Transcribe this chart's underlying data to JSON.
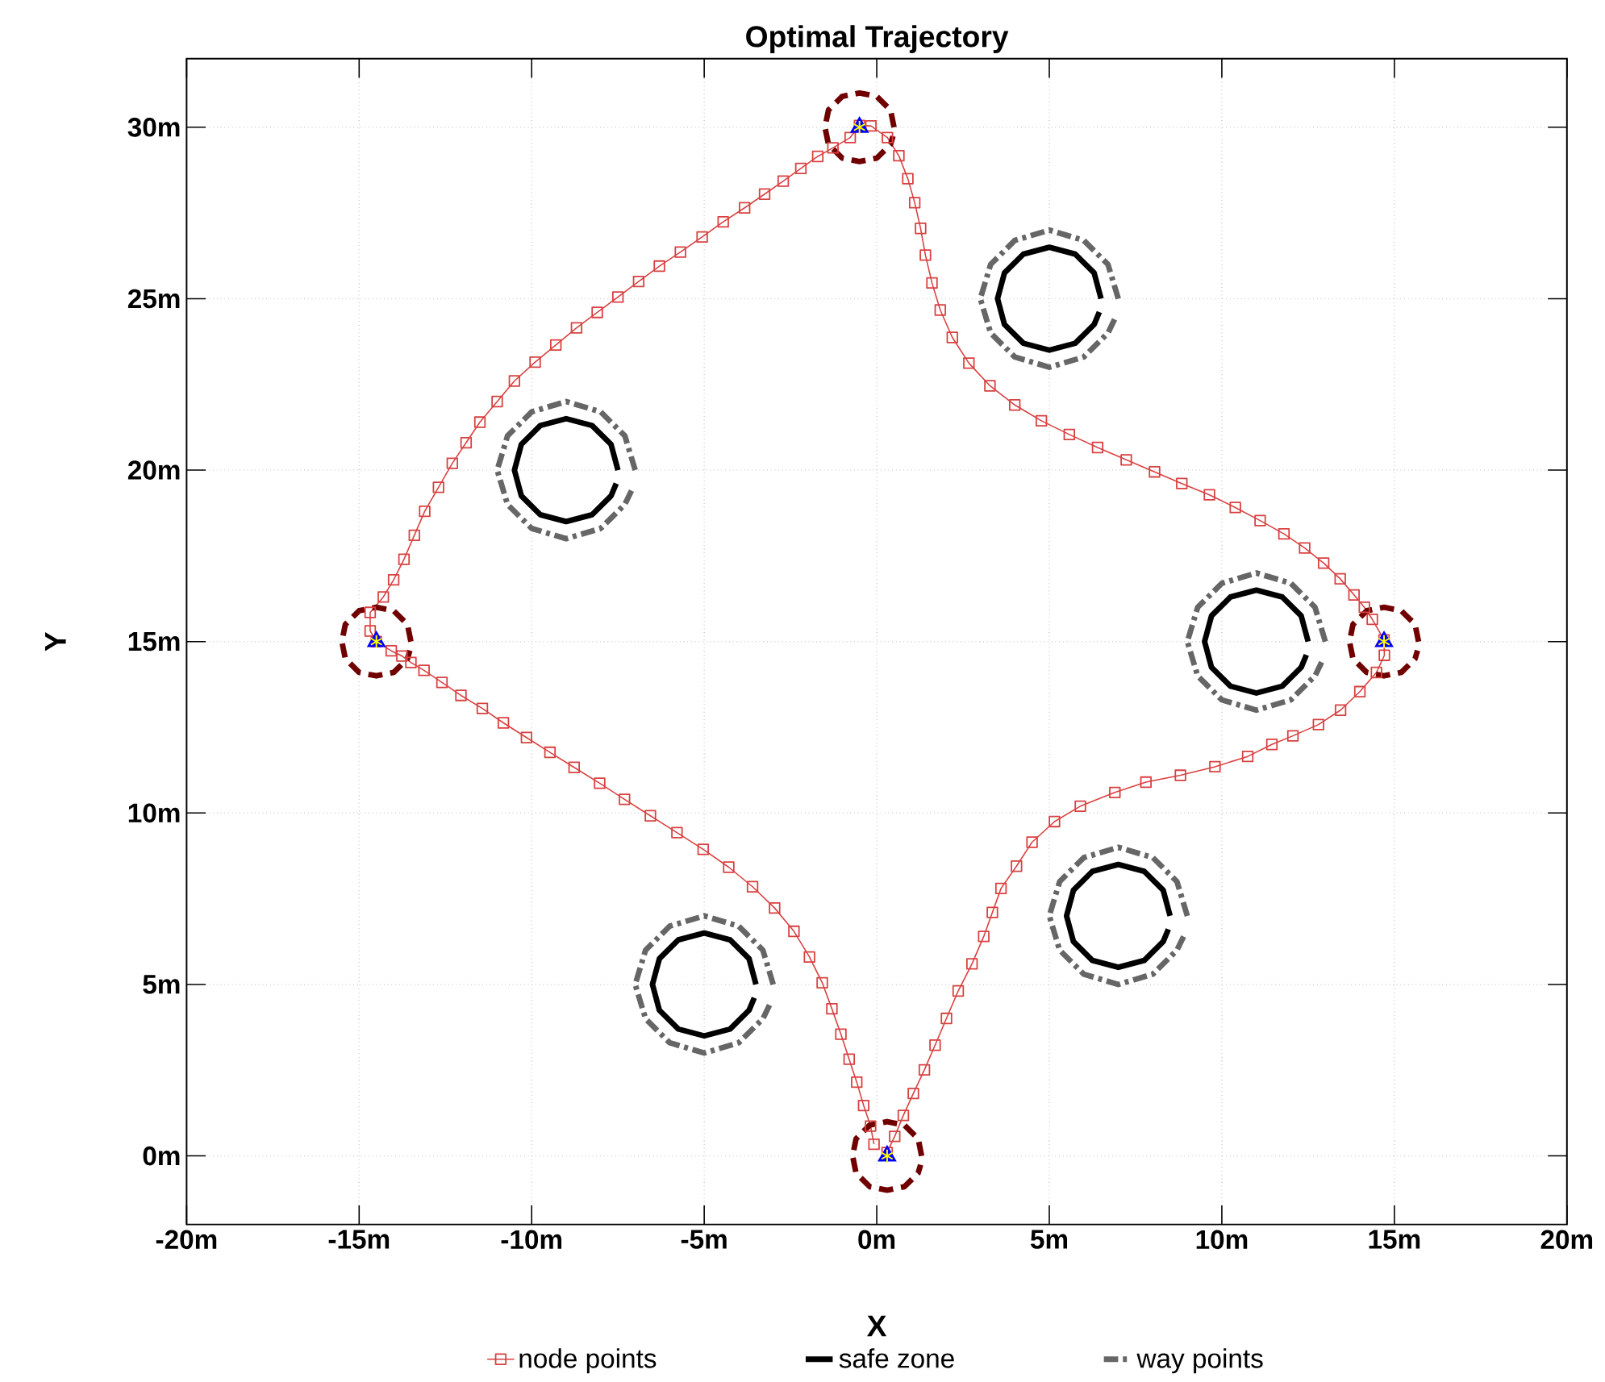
{
  "chart_data": {
    "type": "line",
    "title": "Optimal Trajectory",
    "xlabel": "X",
    "ylabel": "Y",
    "xlim": [
      -20,
      20
    ],
    "ylim": [
      -2,
      32
    ],
    "xticks": [
      {
        "value": -20,
        "label": "-20m"
      },
      {
        "value": -15,
        "label": "-15m"
      },
      {
        "value": -10,
        "label": "-10m"
      },
      {
        "value": -5,
        "label": "-5m"
      },
      {
        "value": 0,
        "label": "0m"
      },
      {
        "value": 5,
        "label": "5m"
      },
      {
        "value": 10,
        "label": "10m"
      },
      {
        "value": 15,
        "label": "15m"
      },
      {
        "value": 20,
        "label": "20m"
      }
    ],
    "yticks": [
      {
        "value": 0,
        "label": "0m"
      },
      {
        "value": 5,
        "label": "5m"
      },
      {
        "value": 10,
        "label": "10m"
      },
      {
        "value": 15,
        "label": "15m"
      },
      {
        "value": 20,
        "label": "20m"
      },
      {
        "value": 25,
        "label": "25m"
      },
      {
        "value": 30,
        "label": "30m"
      }
    ],
    "grid": true,
    "legend": "bottom",
    "series": [
      {
        "name": "node points",
        "color": "#d94040",
        "marker": "square",
        "line_style": "solid",
        "x": [
          0.3,
          0.52,
          0.77,
          1.06,
          1.38,
          1.69,
          2.02,
          2.36,
          2.76,
          3.1,
          3.35,
          3.6,
          4.05,
          4.5,
          5.15,
          5.9,
          6.9,
          7.8,
          8.8,
          9.8,
          10.75,
          11.45,
          12.06,
          12.8,
          13.44,
          14.0,
          14.48,
          14.71,
          14.7,
          14.36,
          14.13,
          13.83,
          13.43,
          12.95,
          12.4,
          11.8,
          11.11,
          10.39,
          9.64,
          8.84,
          8.05,
          7.23,
          6.4,
          5.58,
          4.77,
          4.0,
          3.28,
          2.67,
          2.19,
          1.84,
          1.6,
          1.41,
          1.27,
          1.1,
          0.9,
          0.64,
          0.31,
          -0.17,
          -0.5,
          -0.77,
          -1.27,
          -1.71,
          -2.2,
          -2.71,
          -3.25,
          -3.83,
          -4.45,
          -5.06,
          -5.69,
          -6.3,
          -6.9,
          -7.5,
          -8.1,
          -8.7,
          -9.3,
          -9.9,
          -10.5,
          -11.0,
          -11.5,
          -11.9,
          -12.3,
          -12.7,
          -13.1,
          -13.4,
          -13.7,
          -14.0,
          -14.3,
          -14.68,
          -14.68,
          -14.5,
          -14.07,
          -13.76,
          -13.5,
          -13.12,
          -12.6,
          -12.05,
          -11.43,
          -10.82,
          -10.15,
          -9.47,
          -8.77,
          -8.03,
          -7.31,
          -6.56,
          -5.79,
          -5.03,
          -4.29,
          -3.6,
          -2.96,
          -2.4,
          -1.95,
          -1.58,
          -1.3,
          -1.04,
          -0.8,
          -0.58,
          -0.38,
          -0.18,
          -0.08
        ],
        "values": [
          0.1,
          0.57,
          1.18,
          1.82,
          2.51,
          3.23,
          4.01,
          4.81,
          5.6,
          6.4,
          7.1,
          7.8,
          8.45,
          9.15,
          9.75,
          10.2,
          10.6,
          10.9,
          11.1,
          11.35,
          11.65,
          12.0,
          12.25,
          12.58,
          13.0,
          13.54,
          14.1,
          14.6,
          15.05,
          15.65,
          16.0,
          16.36,
          16.83,
          17.29,
          17.73,
          18.14,
          18.53,
          18.91,
          19.28,
          19.61,
          19.95,
          20.3,
          20.66,
          21.04,
          21.44,
          21.9,
          22.46,
          23.12,
          23.87,
          24.67,
          25.46,
          26.27,
          27.05,
          27.8,
          28.5,
          29.17,
          29.7,
          30.04,
          30.05,
          29.7,
          29.4,
          29.15,
          28.8,
          28.43,
          28.05,
          27.65,
          27.24,
          26.8,
          26.36,
          25.95,
          25.5,
          25.05,
          24.6,
          24.15,
          23.65,
          23.15,
          22.6,
          22.0,
          21.4,
          20.8,
          20.2,
          19.5,
          18.8,
          18.1,
          17.4,
          16.8,
          16.3,
          15.85,
          15.31,
          15.0,
          14.73,
          14.58,
          14.39,
          14.16,
          13.81,
          13.43,
          13.05,
          12.63,
          12.2,
          11.77,
          11.33,
          10.87,
          10.4,
          9.92,
          9.43,
          8.94,
          8.42,
          7.85,
          7.23,
          6.55,
          5.8,
          5.05,
          4.29,
          3.55,
          2.82,
          2.15,
          1.47,
          0.87,
          0.34
        ]
      },
      {
        "name": "safe zone",
        "color": "#000000",
        "marker": "none",
        "line_style": "solid",
        "x": [
          -7.5,
          -7.7,
          -8.25,
          -9,
          -9.75,
          -10.3,
          -10.5,
          -10.3,
          -9.75,
          -9,
          -8.25,
          -7.7,
          -7.55,
          null,
          6.5,
          6.3,
          5.75,
          5,
          4.25,
          3.7,
          3.5,
          3.7,
          4.25,
          5,
          5.75,
          6.3,
          6.45,
          null,
          12.5,
          12.3,
          11.75,
          11,
          10.25,
          9.7,
          9.5,
          9.7,
          10.25,
          11,
          11.75,
          12.3,
          12.45,
          null,
          8.5,
          8.3,
          7.75,
          7,
          6.25,
          5.7,
          5.5,
          5.7,
          6.25,
          7,
          7.75,
          8.3,
          8.45,
          null,
          -3.5,
          -3.7,
          -4.25,
          -5,
          -5.75,
          -6.3,
          -6.5,
          -6.3,
          -5.75,
          -5,
          -4.25,
          -3.7,
          -3.55
        ],
        "values": [
          20,
          20.75,
          21.3,
          21.5,
          21.3,
          20.75,
          20,
          19.25,
          18.7,
          18.5,
          18.7,
          19.25,
          19.61,
          null,
          25,
          25.75,
          26.3,
          26.5,
          26.3,
          25.75,
          25,
          24.25,
          23.7,
          23.5,
          23.7,
          24.25,
          24.61,
          null,
          15,
          15.75,
          16.3,
          16.5,
          16.3,
          15.75,
          15,
          14.25,
          13.7,
          13.5,
          13.7,
          14.25,
          14.61,
          null,
          7,
          7.75,
          8.3,
          8.5,
          8.3,
          7.75,
          7,
          6.25,
          5.7,
          5.5,
          5.7,
          6.25,
          6.61,
          null,
          5,
          5.75,
          6.3,
          6.5,
          6.3,
          5.75,
          5,
          4.25,
          3.7,
          3.5,
          3.7,
          4.25,
          4.61
        ]
      },
      {
        "name": "way points",
        "color": "#666666",
        "marker": "none",
        "line_style": "dashdot",
        "x": [
          -7,
          -7.3,
          -8,
          -9,
          -10,
          -10.7,
          -11,
          -10.7,
          -10,
          -9,
          -8,
          -7.3,
          -7.07,
          null,
          7,
          6.7,
          6,
          5,
          4,
          3.3,
          3,
          3.3,
          4,
          5,
          6,
          6.7,
          6.93,
          null,
          13,
          12.7,
          12,
          11,
          10,
          9.3,
          9,
          9.3,
          10,
          11,
          12,
          12.7,
          12.93,
          null,
          9,
          8.7,
          8,
          7,
          6,
          5.3,
          5,
          5.3,
          6,
          7,
          8,
          8.7,
          8.93,
          null,
          -3,
          -3.3,
          -4,
          -5,
          -6,
          -6.7,
          -7,
          -6.7,
          -6,
          -5,
          -4,
          -3.3,
          -3.07
        ],
        "values": [
          20,
          21,
          21.7,
          22,
          21.7,
          21,
          20,
          19,
          18.3,
          18,
          18.3,
          19,
          19.48,
          null,
          25,
          26,
          26.7,
          27,
          26.7,
          26,
          25,
          24,
          23.3,
          23,
          23.3,
          24,
          24.48,
          null,
          15,
          16,
          16.7,
          17,
          16.7,
          16,
          15,
          14,
          13.3,
          13,
          13.3,
          14,
          14.48,
          null,
          7,
          8,
          8.7,
          9,
          8.7,
          8,
          7,
          6,
          5.3,
          5,
          5.3,
          6,
          6.48,
          null,
          5,
          6,
          6.7,
          7,
          6.7,
          6,
          5,
          4,
          3.3,
          3,
          3.3,
          4,
          4.48
        ]
      },
      {
        "color": "#700000",
        "marker": "none",
        "line_style": "dashed",
        "x": [
          1.3,
          1.2,
          0.8,
          0.3,
          -0.2,
          -0.6,
          -0.7,
          -0.6,
          -0.2,
          0.3,
          0.8,
          1.2,
          1.27,
          null,
          15.7,
          15.6,
          15.2,
          14.7,
          14.2,
          13.8,
          13.7,
          13.8,
          14.2,
          14.7,
          15.2,
          15.6,
          15.67,
          null,
          0.5,
          0.4,
          0,
          -0.5,
          -1,
          -1.4,
          -1.5,
          -1.4,
          -1,
          -0.5,
          0,
          0.4,
          0.47,
          null,
          -13.5,
          -13.6,
          -14,
          -14.5,
          -15,
          -15.4,
          -15.5,
          -15.4,
          -15,
          -14.5,
          -14,
          -13.6,
          -13.53
        ],
        "values": [
          0,
          0.5,
          0.9,
          1,
          0.9,
          0.5,
          0,
          -0.5,
          -0.9,
          -1,
          -0.9,
          -0.5,
          -0.26,
          null,
          15,
          15.5,
          15.9,
          16,
          15.9,
          15.5,
          15,
          14.5,
          14.1,
          14,
          14.1,
          14.5,
          14.74,
          null,
          30,
          30.5,
          30.9,
          31,
          30.9,
          30.5,
          30,
          29.5,
          29.1,
          29,
          29.1,
          29.5,
          29.74,
          null,
          15,
          15.5,
          15.9,
          16,
          15.9,
          15.5,
          15,
          14.5,
          14.1,
          14,
          14.1,
          14.5,
          14.74
        ]
      },
      {
        "type": "scatter",
        "color": "#0000ff",
        "marker": "triangle",
        "x": [
          0.3,
          14.7,
          -0.5,
          -14.5
        ],
        "values": [
          0,
          15,
          30,
          15
        ]
      },
      {
        "type": "scatter",
        "color": "#ffff00",
        "marker": "cross",
        "x": [
          0.3,
          14.7,
          -0.5,
          -14.5
        ],
        "values": [
          0,
          15,
          30,
          15
        ]
      }
    ]
  }
}
